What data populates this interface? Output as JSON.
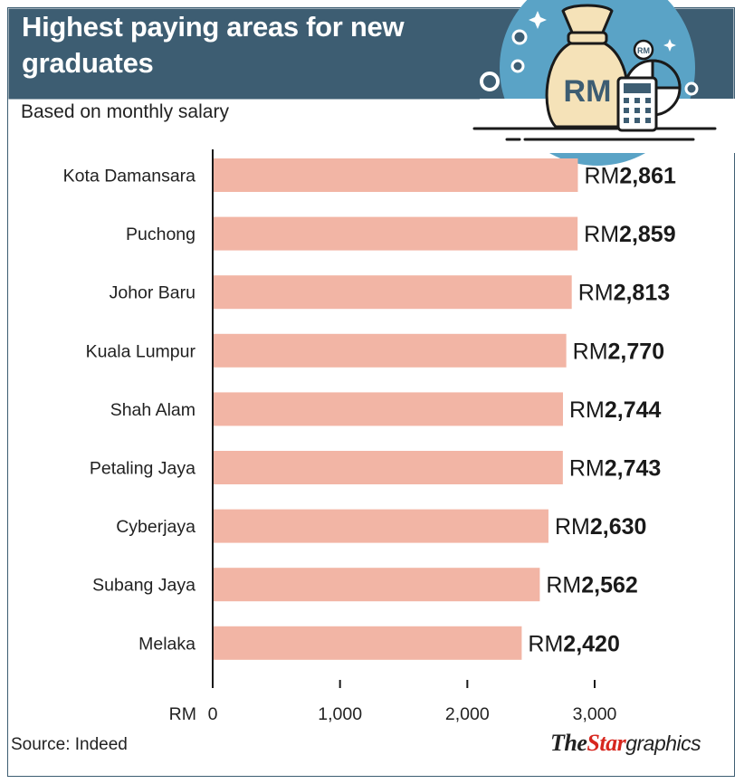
{
  "header": {
    "title": "Highest paying areas for new graduates",
    "subtitle": "Based on monthly salary"
  },
  "illustration": {
    "bag_label": "RM",
    "coin_label": "RM",
    "icon": "money-bag-calculator-icon"
  },
  "footer": {
    "source": "Source: Indeed",
    "brand_the": "The",
    "brand_star": "Star",
    "brand_graphics": "graphics"
  },
  "colors": {
    "header_bg": "#3d5d72",
    "bar": "#f2b5a5",
    "brand_red": "#d7261e",
    "illustration_bg": "#5aa3c6"
  },
  "chart_data": {
    "type": "bar",
    "orientation": "horizontal",
    "categories": [
      "Kota Damansara",
      "Puchong",
      "Johor Baru",
      "Kuala Lumpur",
      "Shah Alam",
      "Petaling Jaya",
      "Cyberjaya",
      "Subang Jaya",
      "Melaka"
    ],
    "values": [
      2861,
      2859,
      2813,
      2770,
      2744,
      2743,
      2630,
      2562,
      2420
    ],
    "value_prefix": "RM",
    "value_labels": [
      "2,861",
      "2,859",
      "2,813",
      "2,770",
      "2,744",
      "2,743",
      "2,630",
      "2,562",
      "2,420"
    ],
    "xlabel": "RM",
    "xticks": [
      0,
      1000,
      2000,
      3000
    ],
    "xtick_labels": [
      "0",
      "1,000",
      "2,000",
      "3,000"
    ],
    "xlim": [
      0,
      3000
    ],
    "grid": false
  }
}
